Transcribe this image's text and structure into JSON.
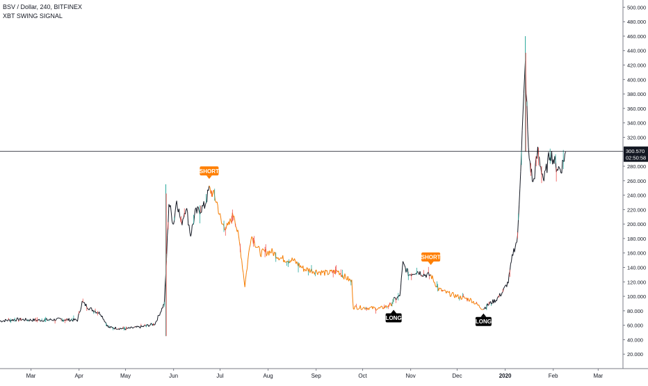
{
  "header": {
    "symbol_line": "BSV / Dollar, 240, BITFINEX",
    "indicator_line": "XBT SWING SIGNAL"
  },
  "price_tag": {
    "value": "300.570",
    "countdown": "02:50:58"
  },
  "colors": {
    "long_segment": "#131722",
    "short_segment": "#f57c00",
    "signal_long_bg": "#000000",
    "signal_short_bg": "#ff7f00",
    "up_candle": "#26a69a",
    "down_candle": "#ef5350",
    "price_line": "#131722",
    "axis_text": "#131722"
  },
  "chart_data": {
    "type": "line",
    "title": "BSV / Dollar, 240, BITFINEX",
    "subtitle": "XBT SWING SIGNAL",
    "ylim": [
      0,
      510
    ],
    "y_ticks": [
      20,
      40,
      60,
      80,
      100,
      120,
      140,
      160,
      180,
      200,
      220,
      240,
      260,
      280,
      300,
      320,
      340,
      360,
      380,
      400,
      420,
      440,
      460,
      480,
      500
    ],
    "y_tick_labels": [
      "20.000",
      "40.000",
      "60.000",
      "80.000",
      "100.000",
      "120.000",
      "140.000",
      "160.000",
      "180.000",
      "200.000",
      "220.000",
      "240.000",
      "260.000",
      "280.000",
      "300.000",
      "320.000",
      "340.000",
      "360.000",
      "380.000",
      "400.000",
      "420.000",
      "440.000",
      "460.000",
      "480.000",
      "500.000"
    ],
    "x_ticks": [
      {
        "date": "2019-03-01",
        "label": "Mar"
      },
      {
        "date": "2019-04-01",
        "label": "Apr"
      },
      {
        "date": "2019-05-01",
        "label": "May"
      },
      {
        "date": "2019-06-01",
        "label": "Jun"
      },
      {
        "date": "2019-07-01",
        "label": "Jul"
      },
      {
        "date": "2019-08-01",
        "label": "Aug"
      },
      {
        "date": "2019-09-01",
        "label": "Sep"
      },
      {
        "date": "2019-10-01",
        "label": "Oct"
      },
      {
        "date": "2019-11-01",
        "label": "Nov"
      },
      {
        "date": "2019-12-01",
        "label": "Dec"
      },
      {
        "date": "2020-01-01",
        "label": "2020"
      },
      {
        "date": "2020-02-01",
        "label": "Feb"
      },
      {
        "date": "2020-03-01",
        "label": "Mar"
      }
    ],
    "x_range": [
      "2019-02-09",
      "2020-03-17"
    ],
    "current_price": 300.57,
    "series": [
      {
        "points": [
          [
            "2019-02-09",
            66
          ],
          [
            "2019-02-20",
            68
          ],
          [
            "2019-03-05",
            67
          ],
          [
            "2019-03-20",
            68
          ],
          [
            "2019-03-31",
            67
          ],
          [
            "2019-04-03",
            92
          ],
          [
            "2019-04-08",
            83
          ],
          [
            "2019-04-15",
            76
          ],
          [
            "2019-04-20",
            57
          ],
          [
            "2019-05-01",
            55
          ],
          [
            "2019-05-12",
            58
          ],
          [
            "2019-05-20",
            62
          ],
          [
            "2019-05-26",
            90
          ],
          [
            "2019-05-27",
            130
          ],
          [
            "2019-05-29",
            230
          ],
          [
            "2019-06-01",
            200
          ],
          [
            "2019-06-03",
            235
          ],
          [
            "2019-06-06",
            200
          ],
          [
            "2019-06-09",
            225
          ],
          [
            "2019-06-12",
            185
          ],
          [
            "2019-06-15",
            215
          ],
          [
            "2019-06-18",
            220
          ],
          [
            "2019-06-21",
            225
          ],
          [
            "2019-06-24",
            248
          ],
          [
            "2019-06-26",
            244
          ],
          [
            "2019-06-29",
            230
          ],
          [
            "2019-07-02",
            200
          ],
          [
            "2019-07-06",
            195
          ],
          [
            "2019-07-10",
            215
          ],
          [
            "2019-07-14",
            168
          ],
          [
            "2019-07-17",
            115
          ],
          [
            "2019-07-21",
            185
          ],
          [
            "2019-07-27",
            160
          ],
          [
            "2019-08-03",
            162
          ],
          [
            "2019-08-10",
            152
          ],
          [
            "2019-08-17",
            150
          ],
          [
            "2019-08-24",
            138
          ],
          [
            "2019-08-31",
            135
          ],
          [
            "2019-09-08",
            132
          ],
          [
            "2019-09-15",
            135
          ],
          [
            "2019-09-19",
            128
          ],
          [
            "2019-09-24",
            120
          ],
          [
            "2019-09-25",
            85
          ],
          [
            "2019-10-05",
            84
          ],
          [
            "2019-10-12",
            83
          ],
          [
            "2019-10-19",
            88
          ],
          [
            "2019-10-21",
            95
          ],
          [
            "2019-10-25",
            100
          ],
          [
            "2019-10-27",
            145
          ],
          [
            "2019-10-31",
            130
          ],
          [
            "2019-11-05",
            135
          ],
          [
            "2019-11-10",
            130
          ],
          [
            "2019-11-14",
            129
          ],
          [
            "2019-11-19",
            110
          ],
          [
            "2019-11-24",
            105
          ],
          [
            "2019-12-01",
            100
          ],
          [
            "2019-12-10",
            95
          ],
          [
            "2019-12-16",
            85
          ],
          [
            "2019-12-18",
            83
          ],
          [
            "2019-12-22",
            90
          ],
          [
            "2019-12-26",
            95
          ],
          [
            "2019-12-30",
            105
          ],
          [
            "2020-01-03",
            120
          ],
          [
            "2020-01-06",
            160
          ],
          [
            "2020-01-09",
            180
          ],
          [
            "2020-01-11",
            280
          ],
          [
            "2020-01-14",
            420
          ],
          [
            "2020-01-16",
            300
          ],
          [
            "2020-01-19",
            255
          ],
          [
            "2020-01-22",
            300
          ],
          [
            "2020-01-26",
            260
          ],
          [
            "2020-01-30",
            300
          ],
          [
            "2020-02-03",
            280
          ],
          [
            "2020-02-06",
            275
          ],
          [
            "2020-02-09",
            300
          ]
        ],
        "signal_changes": [
          {
            "from": "2019-02-09",
            "to": "2019-06-24",
            "signal": "LONG"
          },
          {
            "from": "2019-06-24",
            "to": "2019-10-21",
            "signal": "SHORT"
          },
          {
            "from": "2019-10-21",
            "to": "2019-11-14",
            "signal": "LONG"
          },
          {
            "from": "2019-11-14",
            "to": "2019-12-18",
            "signal": "SHORT"
          },
          {
            "from": "2019-12-18",
            "to": "2020-02-09",
            "signal": "LONG"
          }
        ]
      }
    ],
    "annotations": [
      {
        "text": "SHORT",
        "date": "2019-06-24",
        "value": 248,
        "position": "above"
      },
      {
        "text": "LONG",
        "date": "2019-10-21",
        "value": 88,
        "position": "below"
      },
      {
        "text": "SHORT",
        "date": "2019-11-14",
        "value": 129,
        "position": "above"
      },
      {
        "text": "LONG",
        "date": "2019-12-18",
        "value": 83,
        "position": "below"
      }
    ],
    "spikes": [
      {
        "date": "2019-05-27",
        "high": 255,
        "low": 45
      },
      {
        "date": "2020-01-14",
        "high": 460,
        "low": 300
      }
    ],
    "grid": false,
    "legend": "top-left"
  }
}
